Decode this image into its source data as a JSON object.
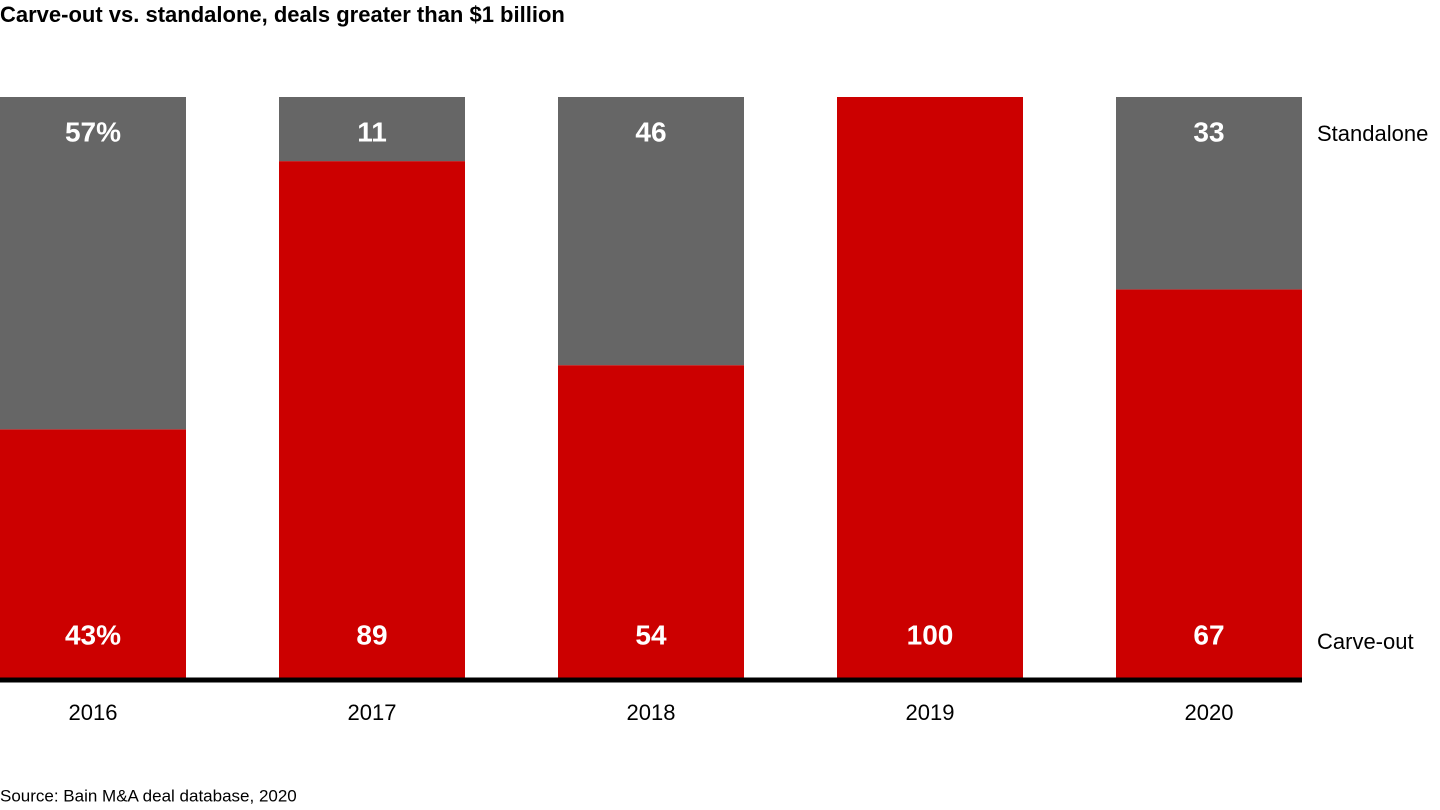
{
  "chart_data": {
    "type": "stacked_bar",
    "title": "Carve-out vs. standalone, deals greater than $1 billion",
    "categories": [
      "2016",
      "2017",
      "2018",
      "2019",
      "2020"
    ],
    "series": [
      {
        "name": "Carve-out",
        "color": "#cc0000",
        "values": [
          43,
          89,
          54,
          100,
          67
        ],
        "value_labels": [
          "43%",
          "89",
          "54",
          "100",
          "67"
        ]
      },
      {
        "name": "Standalone",
        "color": "#666666",
        "values": [
          57,
          11,
          46,
          0,
          33
        ],
        "value_labels": [
          "57%",
          "11",
          "46",
          null,
          "33"
        ]
      }
    ],
    "ylim": [
      0,
      100
    ],
    "source": "Source: Bain M&A deal database, 2020"
  }
}
